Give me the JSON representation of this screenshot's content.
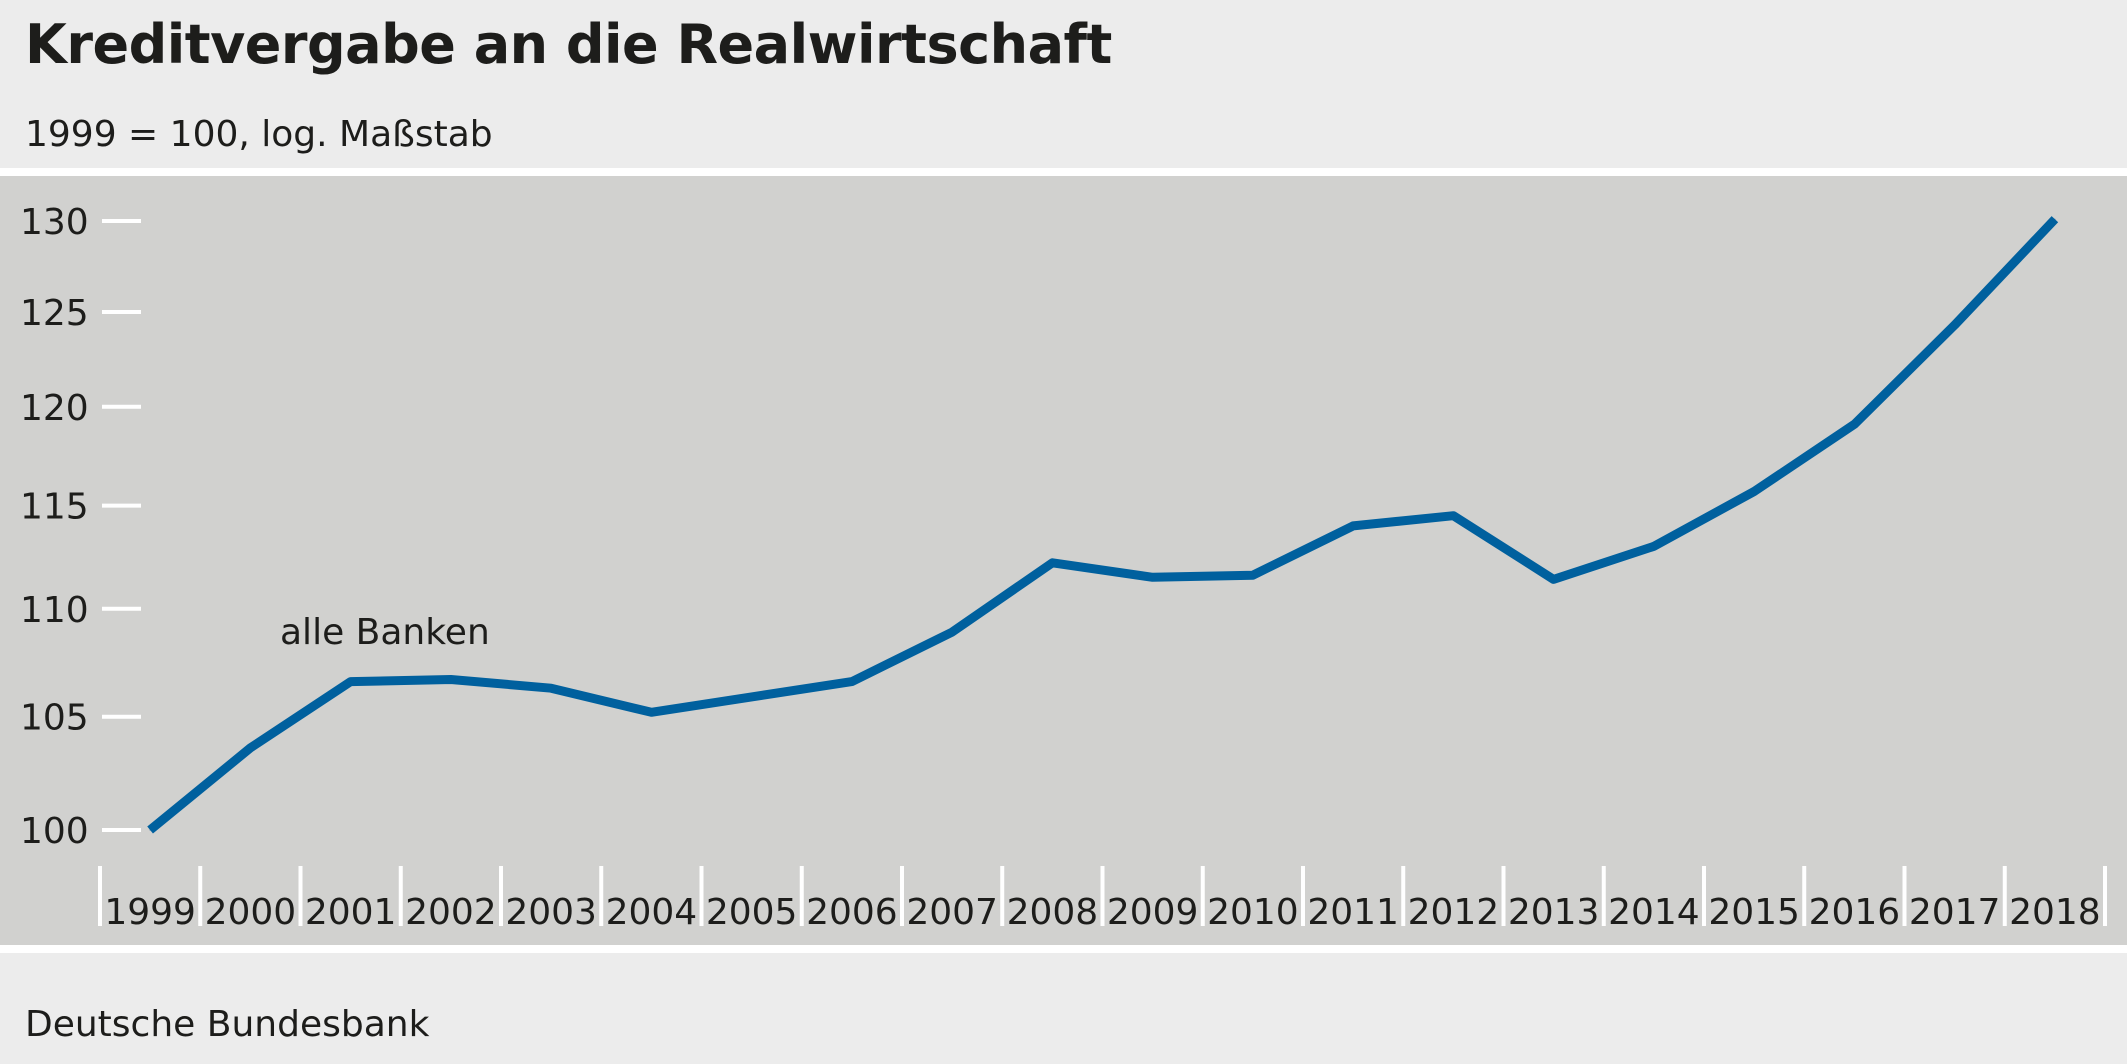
{
  "header": {
    "title": "Kreditvergabe an die Realwirtschaft",
    "subtitle": "1999 = 100, log. Maßstab"
  },
  "footer": {
    "source": "Deutsche Bundesbank"
  },
  "colors": {
    "background": "#ececec",
    "plot_area": "#d1d1cf",
    "line": "#00609e",
    "grid_tick": "#ffffff",
    "text": "#1d1d1b"
  },
  "chart_data": {
    "type": "line",
    "title": "Kreditvergabe an die Realwirtschaft",
    "subtitle": "1999 = 100, log. Maßstab",
    "xlabel": "",
    "ylabel": "",
    "yscale": "log",
    "ylim": [
      98.5,
      131
    ],
    "yticks": [
      100,
      105,
      110,
      115,
      120,
      125,
      130
    ],
    "categories": [
      "1999",
      "2000",
      "2001",
      "2002",
      "2003",
      "2004",
      "2005",
      "2006",
      "2007",
      "2008",
      "2009",
      "2010",
      "2011",
      "2012",
      "2013",
      "2014",
      "2015",
      "2016",
      "2017",
      "2018"
    ],
    "series": [
      {
        "name": "alle Banken",
        "values": [
          100.0,
          103.6,
          106.6,
          106.7,
          106.3,
          105.2,
          105.9,
          106.6,
          108.9,
          112.2,
          111.5,
          111.6,
          114.0,
          114.5,
          111.4,
          113.0,
          115.7,
          119.1,
          124.3,
          130.1
        ]
      }
    ],
    "grid": false,
    "legend": "inline"
  }
}
